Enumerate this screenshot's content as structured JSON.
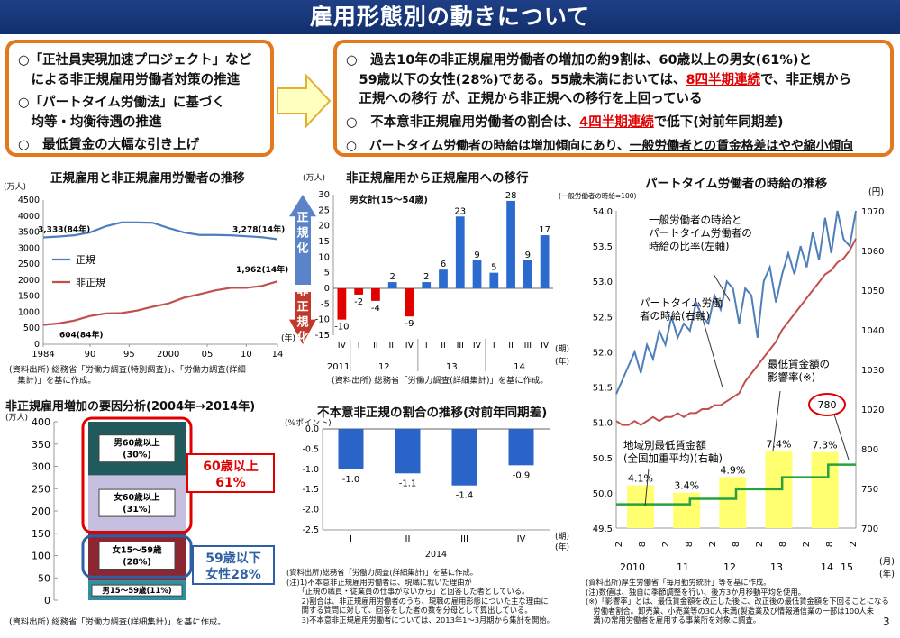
{
  "page": {
    "title": "雇用形態別の動きについて",
    "page_number": "3"
  },
  "left_box": {
    "lines": [
      "○「正社員実現加速プロジェクト」など",
      "　による非正規雇用労働者対策の推進",
      "○「パートタイム労働法」に基づく",
      "　均等・均衡待遇の推進",
      "○　最低賃金の大幅な引き上げ"
    ]
  },
  "right_box": {
    "l1": "○　過去10年の非正規雇用労働者の増加の約9割は、60歳以上の男女(61%)と",
    "l2a": "　59歳以下の女性(28%)である。55歳未満においては、",
    "l2b": "8四半期連続",
    "l2c": "で、非正規から",
    "l3": "　正規への移行 が、正規から非正規への移行を上回っている",
    "l4a": "○　不本意非正規雇用労働者の割合は、",
    "l4b": "4四半期連続",
    "l4c": "で低下(対前年同期差)",
    "l5a": "○　パートタイム労働者の時給は増加傾向にあり、",
    "l5b": "一般労働者との賃金格差はやや縮小傾向"
  },
  "panels": {
    "p1_title": "正規雇用と非正規雇用労働者の推移",
    "p1_unit": "(万人)",
    "p1_year_unit": "(年)",
    "p1_source": "(資料出所) 総務省「労働力調査(特別調査)」、「労働力調査(詳細",
    "p1_source2": "　集計)」を基に作成。",
    "p2_title": "非正規雇用から正規雇用への移行",
    "p2_unit": "(万人)",
    "p2_subtitle": "男女計(15～54歳)",
    "p2_period_unit": "(期)",
    "p2_year_unit": "(年)",
    "p2_source": "(資料出所) 総務省「労働力調査(詳細集計)」を基に作成。",
    "p2_arrow_up": "正規化",
    "p2_arrow_down": "非正規化",
    "p3_title": "パートタイム労働者の時給の推移",
    "p3_left_unit": "(一般労働者の時給=100)",
    "p3_right_unit": "(円)",
    "p3_annot1": "一般労働者の時給と\nパートタイム労働者の\n時給の比率(左軸)",
    "p3_annot2": "パートタイム労働\n者の時給(右軸)",
    "p3_annot3": "最低賃金額の\n影響率(※)",
    "p3_annot4": "地域別最低賃金額\n(全国加重平均)(右軸)",
    "p3_circle": "780",
    "p3_month_unit": "(月)",
    "p3_year_unit": "(年)",
    "p3_notes": "(資料出所)厚生労働省「毎月勤労統計」等を基に作成。\n(注)数値は、独自に季節調整を行い、後方3か月移動平均を使用。\n(※)「影響率」とは、最低賃金額を改正した後に、改正後の最低賃金額を下回ることになる\n　労働者割合。卸売業、小売業等の30人未満(製造業及び情報通信業の一部は100人未\n　満)の常用労働者を雇用する事業所を対象に調査。",
    "p4_title": "非正規雇用増加の要因分析(2004年→2014年)",
    "p4_unit": "(万人)",
    "p4_source": "(資料出所) 総務省「労働力調査(詳細集計)」を基に作成。",
    "p4_box1": "60歳以上\n61%",
    "p4_box2": "59歳以下\n女性28%",
    "p5_title": "不本意非正規の割合の推移(対前年同期差)",
    "p5_unit": "(%ポイント)",
    "p5_period_unit": "(期)",
    "p5_year_unit": "(年)",
    "p5_notes": "(資料出所)総務省「労働力調査(詳細集計)」を基に作成。\n(注)1)不本意非正規雇用労働者は、現職に就いた理由が\n　　「正規の職員・従業員の仕事がないから」と回答した者としている。\n　　2)割合は、非正規雇用労働者のうち、現職の雇用形態についた主な理由に\n　　関する質問に対して、回答をした者の数を分母として算出している。\n　　3)不本意非正規雇用労働者については、2013年1～3月期から集計を開始。"
  },
  "colors": {
    "regular": "#4f7fba",
    "nonregular": "#c0504d",
    "red_bar": "#e00000",
    "blue_bar": "#2b6bd0",
    "neg_bar": "#2a64c8",
    "ratio_line": "#4f7fba",
    "wage_line": "#c0504d",
    "minwage_line": "#27a23c",
    "impact_bar": "#ffff70",
    "orange": "#e2791c"
  },
  "chart_data": [
    {
      "type": "line",
      "title": "正規雇用と非正規雇用労働者の推移",
      "ylabel": "(万人)",
      "xlabel": "(年)",
      "ylim": [
        0,
        4500
      ],
      "yticks": [
        "0",
        "500",
        "1000",
        "1500",
        "2000",
        "2500",
        "3000",
        "3500",
        "4000",
        "4500"
      ],
      "xticks": [
        "1984",
        "90",
        "95",
        "2000",
        "05",
        "10",
        "14"
      ],
      "x": [
        1984,
        1986,
        1988,
        1990,
        1992,
        1994,
        1996,
        1998,
        2000,
        2002,
        2004,
        2006,
        2008,
        2010,
        2012,
        2014
      ],
      "series": [
        {
          "name": "正規",
          "values": [
            3333,
            3360,
            3400,
            3490,
            3680,
            3800,
            3800,
            3790,
            3630,
            3490,
            3410,
            3410,
            3400,
            3370,
            3340,
            3278
          ]
        },
        {
          "name": "非正規",
          "values": [
            604,
            650,
            740,
            880,
            960,
            970,
            1050,
            1170,
            1270,
            1450,
            1560,
            1680,
            1760,
            1760,
            1820,
            1962
          ]
        }
      ],
      "labels": [
        "3,333(84年)",
        "3,278(14年)",
        "1,962(14年)",
        "604(84年)"
      ]
    },
    {
      "type": "bar",
      "title": "非正規雇用から正規雇用への移行",
      "subtitle": "男女計(15～54歳)",
      "ylabel": "(万人)",
      "ylim": [
        -15,
        30
      ],
      "yticks": [
        "-15",
        "-10",
        "-5",
        "0",
        "5",
        "10",
        "15",
        "20",
        "25",
        "30"
      ],
      "categories": [
        "IV",
        "I",
        "II",
        "III",
        "IV",
        "I",
        "II",
        "III",
        "IV",
        "I",
        "II",
        "III",
        "IV"
      ],
      "years": [
        "2011",
        "12",
        "13",
        "14"
      ],
      "values": [
        -10,
        -2,
        -4,
        2,
        -9,
        2,
        6,
        23,
        9,
        5,
        28,
        9,
        17
      ],
      "value_labels": [
        "-10",
        "-2",
        "-4",
        "2",
        "-9",
        "2",
        "6",
        "23",
        "9",
        "5",
        "28",
        "9",
        "17"
      ]
    },
    {
      "type": "bar",
      "title": "非正規雇用増加の要因分析(2004年→2014年)",
      "ylabel": "(万人)",
      "ylim": [
        0,
        400
      ],
      "yticks": [
        "0",
        "50",
        "100",
        "150",
        "200",
        "250",
        "300",
        "350",
        "400"
      ],
      "stack": [
        {
          "name": "男15～59歳(11%)",
          "value": 44
        },
        {
          "name": "女15～59歳\n(28%)",
          "value": 112
        },
        {
          "name": "女60歳以上\n(31%)",
          "value": 124
        },
        {
          "name": "男60歳以上\n(30%)",
          "value": 120
        }
      ]
    },
    {
      "type": "bar",
      "title": "不本意非正規の割合の推移(対前年同期差)",
      "ylabel": "(%ポイント)",
      "ylim": [
        -2.5,
        0.0
      ],
      "yticks": [
        "0.0",
        "-0.5",
        "-1.0",
        "-1.5",
        "-2.0",
        "-2.5"
      ],
      "categories": [
        "I",
        "II",
        "III",
        "IV"
      ],
      "year": "2014",
      "values": [
        -1.0,
        -1.1,
        -1.4,
        -0.9
      ],
      "value_labels": [
        "-1.0",
        "-1.1",
        "-1.4",
        "-0.9"
      ]
    },
    {
      "type": "line",
      "title": "パートタイム労働者の時給の推移",
      "left_ylim": [
        49.5,
        54.0
      ],
      "left_yticks": [
        "49.5",
        "50.0",
        "50.5",
        "51.0",
        "51.5",
        "52.0",
        "52.5",
        "53.0",
        "53.5",
        "54.0"
      ],
      "right_yticks": [
        "700",
        "750",
        "800",
        "1020",
        "1030",
        "1040",
        "1050",
        "1060",
        "1070"
      ],
      "month_ticks": [
        "2",
        "8",
        "2",
        "8",
        "2",
        "8",
        "2",
        "8",
        "2",
        "8",
        "2"
      ],
      "year_labels": [
        "2010",
        "11",
        "12",
        "13",
        "14",
        "15"
      ],
      "ratio_series_left": [
        51.4,
        51.6,
        51.8,
        52.0,
        51.7,
        52.1,
        51.9,
        52.3,
        52.1,
        52.5,
        52.2,
        52.4,
        52.3,
        52.7,
        52.5,
        52.4,
        52.8,
        52.6,
        53.0,
        52.9,
        52.4,
        52.9,
        52.8,
        52.2,
        53.0,
        53.2,
        52.7,
        53.1,
        53.4,
        53.1,
        53.5,
        53.2,
        53.7,
        53.3,
        53.9,
        53.4,
        54.0,
        53.6,
        53.5,
        54.0
      ],
      "wage_series_right": [
        1017,
        1016,
        1016,
        1017,
        1016,
        1017,
        1018,
        1017,
        1018,
        1018,
        1019,
        1018,
        1019,
        1019,
        1020,
        1020,
        1021,
        1021,
        1022,
        1023,
        1024,
        1027,
        1029,
        1031,
        1033,
        1035,
        1037,
        1040,
        1042,
        1044,
        1046,
        1048,
        1050,
        1052,
        1054,
        1055,
        1057,
        1058,
        1060,
        1063
      ],
      "min_wage_steps": [
        {
          "year": "2010",
          "value": 730
        },
        {
          "year": "11",
          "value": 737
        },
        {
          "year": "12",
          "value": 749
        },
        {
          "year": "13",
          "value": 764
        },
        {
          "year": "14",
          "value": 780
        }
      ],
      "impact_rates": [
        {
          "label": "4.1%",
          "value": 4.1
        },
        {
          "label": "3.4%",
          "value": 3.4
        },
        {
          "label": "4.9%",
          "value": 4.9
        },
        {
          "label": "7.4%",
          "value": 7.4
        },
        {
          "label": "7.3%",
          "value": 7.3
        }
      ]
    }
  ]
}
